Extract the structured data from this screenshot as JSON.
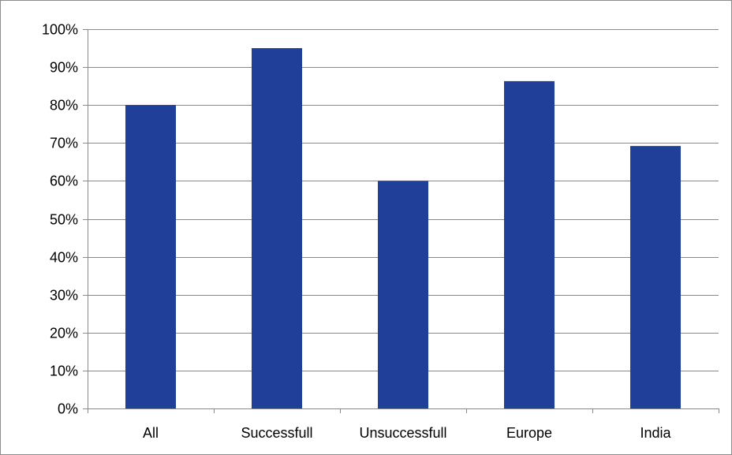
{
  "chart_data": {
    "type": "bar",
    "title": "",
    "xlabel": "",
    "ylabel": "",
    "categories": [
      "All",
      "Successfull",
      "Unsuccessfull",
      "Europe",
      "India"
    ],
    "values": [
      80,
      95,
      60,
      86.3,
      69.2
    ],
    "ylim": [
      0,
      100
    ],
    "yticks": [
      0,
      10,
      20,
      30,
      40,
      50,
      60,
      70,
      80,
      90,
      100
    ],
    "y_tick_suffix": "%",
    "grid": true,
    "legend": "none",
    "bar_color": "#1f3f99"
  }
}
